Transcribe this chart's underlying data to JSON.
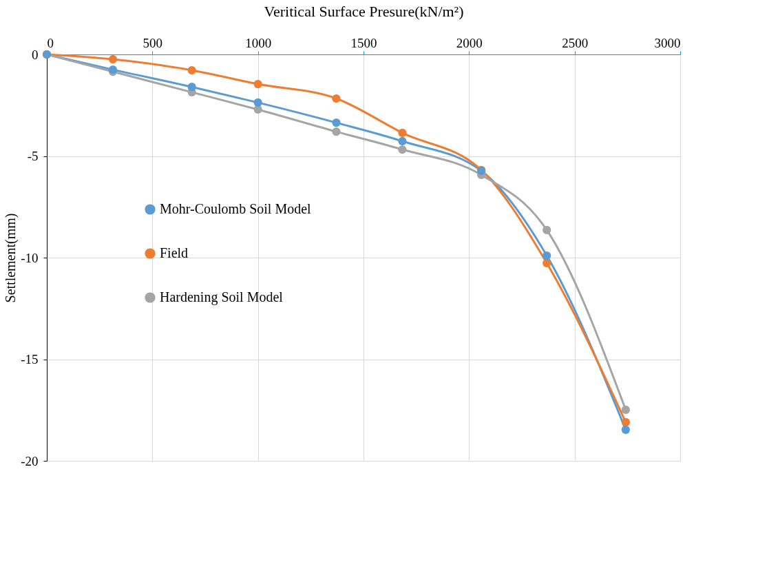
{
  "chart_data": {
    "type": "line",
    "xlabel": "Veritical Surface Presure(kN/m²)",
    "ylabel": "Settlement(mm)",
    "x": [
      0,
      313,
      687,
      1000,
      1371,
      1684,
      2058,
      2368,
      2742
    ],
    "series": [
      {
        "name": "Mohr-Coulomb Soil Model",
        "color": "#5b9bd5",
        "values": [
          0,
          -0.75,
          -1.6,
          -2.37,
          -3.36,
          -4.27,
          -5.73,
          -9.9,
          -18.47
        ]
      },
      {
        "name": "Field",
        "color": "#ed7d31",
        "values": [
          0,
          -0.24,
          -0.78,
          -1.46,
          -2.17,
          -3.86,
          -5.69,
          -10.27,
          -18.1
        ]
      },
      {
        "name": "Hardening Soil Model",
        "color": "#a5a5a5",
        "values": [
          0,
          -0.85,
          -1.86,
          -2.71,
          -3.8,
          -4.68,
          -5.93,
          -8.64,
          -17.49
        ]
      }
    ],
    "xlim": [
      0,
      3000
    ],
    "xticks": [
      0,
      500,
      1000,
      1500,
      2000,
      2500,
      3000
    ],
    "ylim": [
      -20,
      0
    ],
    "yticks": [
      -20,
      -15,
      -10,
      -5,
      0
    ],
    "grid": true,
    "legend": "left",
    "marker": "circle",
    "line_style": "solid"
  }
}
